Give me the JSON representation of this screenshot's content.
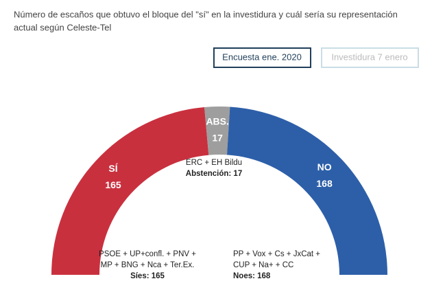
{
  "chart_data": {
    "type": "half-donut",
    "title": [
      "Número de escaños que obtuvo el bloque del \"sí\" en la investidura y cuál sería su representación",
      "actual según Celeste-Tel"
    ],
    "buttons": [
      "Encuesta ene. 2020",
      "Investidura 7 enero"
    ],
    "categories": [
      "SÍ",
      "ABS.",
      "NO"
    ],
    "values": [
      165,
      17,
      168
    ],
    "colors": [
      "#c9303e",
      "#9e9e9e",
      "#2d5fa9"
    ],
    "annotations": [
      {
        "lines": [
          "PSOE + UP+confl. + PNV +",
          "MP + BNG + Nca + Ter.Ex."
        ],
        "total": "Síes: 165"
      },
      {
        "lines": [
          "ERC + EH Bildu"
        ],
        "total": "Abstención: 17"
      },
      {
        "lines": [
          "PP + Vox + Cs + JxCat +",
          "CUP + Na+ + CC"
        ],
        "total": "Noes: 168"
      }
    ]
  }
}
